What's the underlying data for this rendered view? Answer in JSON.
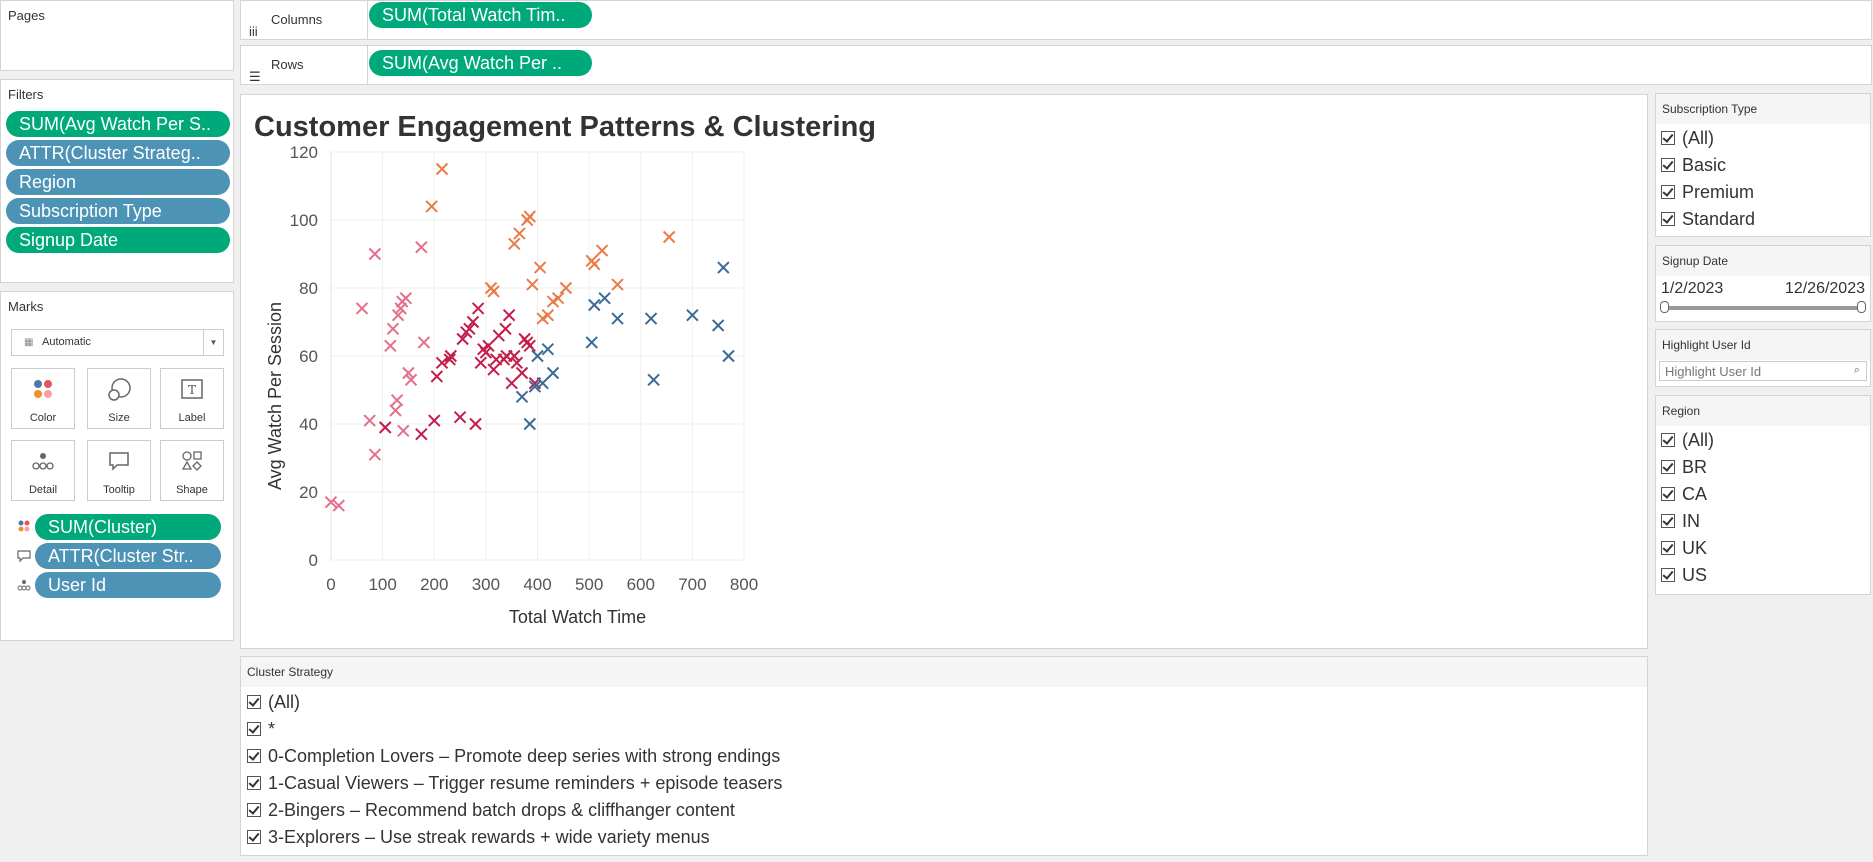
{
  "pages_panel": {
    "title": "Pages"
  },
  "filters_panel": {
    "title": "Filters",
    "pills": [
      "SUM(Avg Watch Per S..",
      "ATTR(Cluster Strateg..",
      "Region",
      "Subscription Type",
      "Signup Date"
    ]
  },
  "marks_panel": {
    "title": "Marks",
    "mark_type": "Automatic",
    "buttons": [
      "Color",
      "Size",
      "Label",
      "Detail",
      "Tooltip",
      "Shape"
    ],
    "pills": [
      "SUM(Cluster)",
      "ATTR(Cluster Str..",
      "User Id"
    ]
  },
  "shelves": {
    "columns_label": "Columns",
    "columns_pill": "SUM(Total Watch Tim..",
    "rows_label": "Rows",
    "rows_pill": "SUM(Avg Watch Per .."
  },
  "colors": {
    "pill_green": "#00a97a",
    "pill_blue": "#4d93b5",
    "cluster0": "#e36f8c",
    "cluster1": "#c41d4a",
    "cluster2": "#ea7b47",
    "cluster3": "#3a6b96"
  },
  "chart_data": {
    "type": "scatter",
    "title": "Customer Engagement Patterns & Clustering",
    "xlabel": "Total Watch Time",
    "ylabel": "Avg Watch Per Session",
    "xlim": [
      0,
      800
    ],
    "ylim": [
      0,
      120
    ],
    "x_ticks": [
      "0",
      "100",
      "200",
      "300",
      "400",
      "500",
      "600",
      "700",
      "800"
    ],
    "y_ticks": [
      "0",
      "20",
      "40",
      "60",
      "80",
      "100",
      "120"
    ],
    "grid": true,
    "marker": "x",
    "series": [
      {
        "cluster": 0,
        "color": "#e36f8c",
        "points": [
          [
            0,
            17
          ],
          [
            15,
            16
          ],
          [
            60,
            74
          ],
          [
            75,
            41
          ],
          [
            85,
            90
          ],
          [
            85,
            31
          ],
          [
            105,
            39
          ],
          [
            115,
            63
          ],
          [
            120,
            68
          ],
          [
            125,
            44
          ],
          [
            128,
            47
          ],
          [
            130,
            72
          ],
          [
            135,
            74
          ],
          [
            138,
            76
          ],
          [
            140,
            38
          ],
          [
            145,
            77
          ],
          [
            150,
            55
          ],
          [
            155,
            53
          ],
          [
            175,
            92
          ],
          [
            180,
            64
          ]
        ]
      },
      {
        "cluster": 1,
        "color": "#c41d4a",
        "points": [
          [
            105,
            39
          ],
          [
            175,
            37
          ],
          [
            200,
            41
          ],
          [
            205,
            54
          ],
          [
            215,
            58
          ],
          [
            230,
            59
          ],
          [
            232,
            60
          ],
          [
            250,
            42
          ],
          [
            255,
            65
          ],
          [
            262,
            67
          ],
          [
            268,
            68
          ],
          [
            275,
            70
          ],
          [
            280,
            40
          ],
          [
            285,
            74
          ],
          [
            290,
            58
          ],
          [
            295,
            62
          ],
          [
            300,
            61
          ],
          [
            305,
            63
          ],
          [
            315,
            56
          ],
          [
            320,
            59
          ],
          [
            325,
            66
          ],
          [
            335,
            59
          ],
          [
            338,
            68
          ],
          [
            340,
            60
          ],
          [
            345,
            72
          ],
          [
            350,
            52
          ],
          [
            355,
            60
          ],
          [
            360,
            58
          ],
          [
            370,
            55
          ],
          [
            375,
            65
          ],
          [
            380,
            64
          ],
          [
            385,
            63
          ],
          [
            395,
            52
          ]
        ]
      },
      {
        "cluster": 2,
        "color": "#ea7b47",
        "points": [
          [
            195,
            104
          ],
          [
            215,
            115
          ],
          [
            310,
            80
          ],
          [
            315,
            79
          ],
          [
            355,
            93
          ],
          [
            365,
            96
          ],
          [
            380,
            100
          ],
          [
            385,
            101
          ],
          [
            390,
            81
          ],
          [
            405,
            86
          ],
          [
            410,
            71
          ],
          [
            420,
            72
          ],
          [
            430,
            76
          ],
          [
            440,
            77
          ],
          [
            455,
            80
          ],
          [
            505,
            88
          ],
          [
            510,
            87
          ],
          [
            525,
            91
          ],
          [
            555,
            81
          ],
          [
            655,
            95
          ]
        ]
      },
      {
        "cluster": 3,
        "color": "#3a6b96",
        "points": [
          [
            370,
            48
          ],
          [
            385,
            40
          ],
          [
            395,
            51
          ],
          [
            400,
            60
          ],
          [
            410,
            52
          ],
          [
            420,
            62
          ],
          [
            430,
            55
          ],
          [
            505,
            64
          ],
          [
            510,
            75
          ],
          [
            530,
            77
          ],
          [
            555,
            71
          ],
          [
            620,
            71
          ],
          [
            625,
            53
          ],
          [
            700,
            72
          ],
          [
            750,
            69
          ],
          [
            760,
            86
          ],
          [
            770,
            60
          ]
        ]
      }
    ]
  },
  "filter_subscription": {
    "title": "Subscription Type",
    "items": [
      "(All)",
      "Basic",
      "Premium",
      "Standard"
    ]
  },
  "filter_signup": {
    "title": "Signup Date",
    "start": "1/2/2023",
    "end": "12/26/2023"
  },
  "filter_highlight": {
    "title": "Highlight User Id",
    "placeholder": "Highlight User Id"
  },
  "filter_region": {
    "title": "Region",
    "items": [
      "(All)",
      "BR",
      "CA",
      "IN",
      "UK",
      "US"
    ]
  },
  "filter_cluster_strategy": {
    "title": "Cluster Strategy",
    "items": [
      "(All)",
      "*",
      "0-Completion Lovers – Promote deep series with strong endings",
      "1-Casual Viewers – Trigger resume reminders + episode teasers",
      "2-Bingers – Recommend batch drops & cliffhanger content",
      "3-Explorers – Use streak rewards + wide variety menus"
    ]
  }
}
